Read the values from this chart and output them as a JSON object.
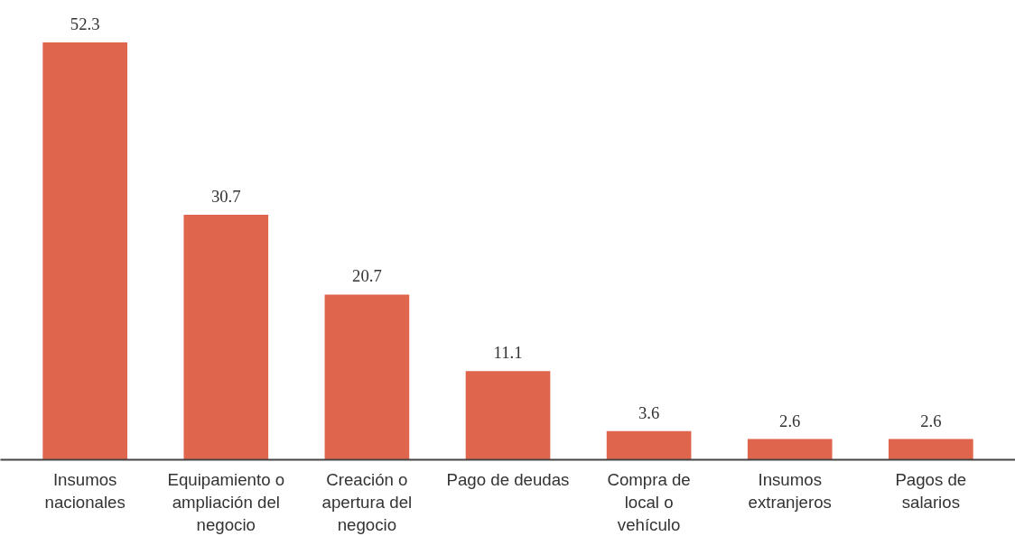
{
  "chart_data": {
    "type": "bar",
    "categories": [
      "Insumos nacionales",
      "Equipamiento o ampliación del negocio",
      "Creación o apertura del negocio",
      "Pago de deudas",
      "Compra de local o vehículo",
      "Insumos extranjeros",
      "Pagos de salarios"
    ],
    "values": [
      52.3,
      30.7,
      20.7,
      11.1,
      3.6,
      2.6,
      2.6
    ],
    "color": "#df654c",
    "data_labels": true,
    "grid": false,
    "tick_labels": "x"
  }
}
